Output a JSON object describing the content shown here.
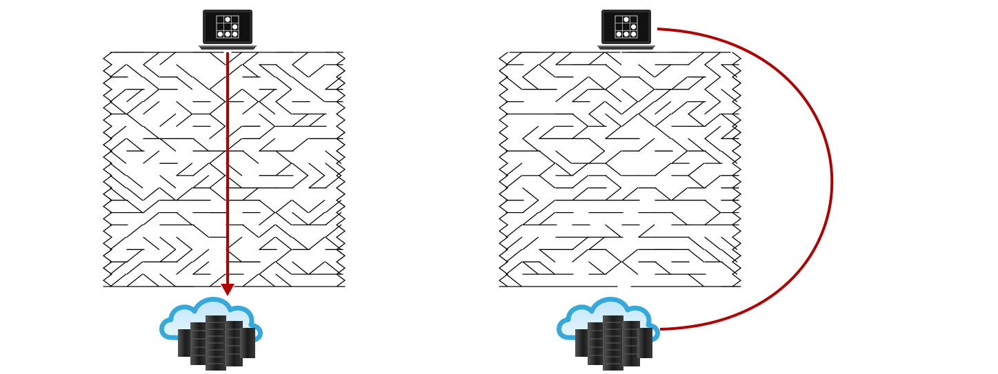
{
  "panels": [
    {
      "id": "left",
      "laptop": {
        "icon": "laptop-glider-logo-icon"
      },
      "cloud": {
        "icon": "cloud-datacenter-icon"
      },
      "path": {
        "type": "straight-arrow",
        "description_icon": "direct-path-arrow-icon"
      }
    },
    {
      "id": "right",
      "laptop": {
        "icon": "laptop-glider-logo-icon"
      },
      "cloud": {
        "icon": "cloud-datacenter-icon"
      },
      "path": {
        "type": "curved-bypass",
        "description_icon": "bypass-path-curve-icon"
      }
    }
  ],
  "colors": {
    "path": "#b00000",
    "maze_line": "#000000",
    "cloud_outline": "#35a8dc",
    "cloud_inner": "#7cc8ee",
    "server_dark": "#1d1d1d",
    "server_mid": "#4a4a4a",
    "laptop_body": "#2b2b2b",
    "laptop_screen": "#111111",
    "background": "#ffffff"
  }
}
